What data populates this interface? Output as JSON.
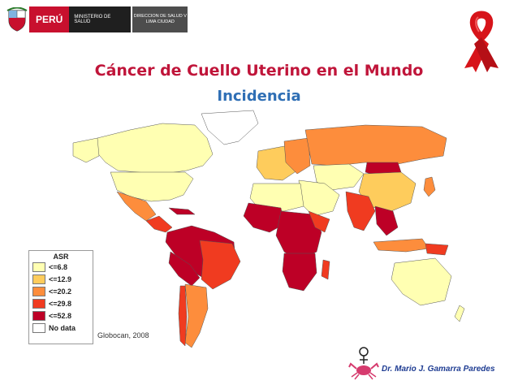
{
  "header": {
    "country": "PERÚ",
    "ministry": "MINISTERIO DE SALUD",
    "direction": "DIRECCION DE SALUD V\nLIMA CIUDAD"
  },
  "title": "Cáncer de Cuello Uterino en el Mundo",
  "subtitle": "Incidencia",
  "legend": {
    "title": "ASR",
    "items": [
      {
        "label": "<=6.8",
        "color": "#ffffb2"
      },
      {
        "label": "<=12.9",
        "color": "#fecc5c"
      },
      {
        "label": "<=20.2",
        "color": "#fd8d3c"
      },
      {
        "label": "<=29.8",
        "color": "#f03b20"
      },
      {
        "label": "<=52.8",
        "color": "#bd0026"
      },
      {
        "label": "No data",
        "color": "#ffffff"
      }
    ]
  },
  "source": "Globocan, 2008",
  "author": "Dr. Mario J. Gamarra Paredes",
  "colors": {
    "title": "#c0153a",
    "subtitle": "#2f6fb5",
    "ribbon": "#d7141a",
    "author": "#1e3c92"
  }
}
